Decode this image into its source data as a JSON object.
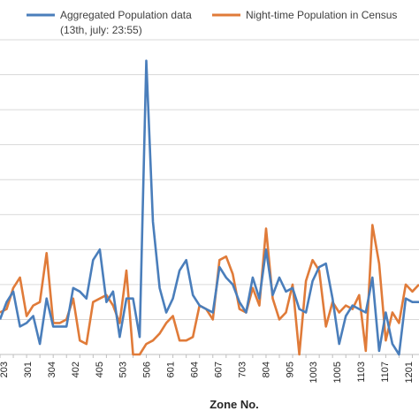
{
  "chart_data": {
    "type": "line",
    "xlabel": "Zone No.",
    "legend_position": "top",
    "grid": true,
    "ylim": [
      0,
      9
    ],
    "x_tick_labels": [
      "203",
      "301",
      "304",
      "402",
      "405",
      "503",
      "506",
      "601",
      "604",
      "607",
      "703",
      "804",
      "905",
      "1003",
      "1005",
      "1103",
      "1107",
      "1201"
    ],
    "series": [
      {
        "name": "Aggregated Population data",
        "name_line2": "(13th, july: 23:55)",
        "color": "#4a7ebb",
        "values": [
          1.0,
          1.5,
          1.8,
          0.8,
          0.9,
          1.1,
          0.3,
          1.6,
          0.8,
          0.8,
          0.8,
          1.9,
          1.8,
          1.6,
          2.7,
          3.0,
          1.5,
          1.8,
          0.5,
          1.6,
          1.6,
          0.5,
          8.4,
          3.8,
          1.9,
          1.2,
          1.6,
          2.4,
          2.7,
          1.7,
          1.4,
          1.3,
          1.2,
          2.5,
          2.2,
          2.0,
          1.5,
          1.2,
          2.2,
          1.6,
          3.0,
          1.7,
          2.2,
          1.8,
          1.9,
          1.3,
          1.2,
          2.1,
          2.5,
          2.6,
          1.6,
          0.3,
          1.1,
          1.4,
          1.3,
          1.2,
          2.2,
          0.1,
          1.2,
          0.3,
          0.0,
          1.6,
          1.5,
          1.5
        ]
      },
      {
        "name": "Night-time Population in Census",
        "color": "#e07b39",
        "values": [
          1.2,
          1.3,
          1.9,
          2.2,
          1.1,
          1.4,
          1.5,
          2.9,
          0.9,
          0.9,
          1.0,
          1.6,
          0.4,
          0.3,
          1.5,
          1.6,
          1.7,
          1.4,
          0.9,
          2.4,
          0.0,
          0.0,
          0.3,
          0.4,
          0.6,
          0.9,
          1.1,
          0.4,
          0.4,
          0.5,
          1.4,
          1.3,
          1.0,
          2.7,
          2.8,
          2.3,
          1.3,
          1.2,
          1.9,
          1.4,
          3.6,
          1.6,
          1.0,
          1.2,
          2.0,
          0.0,
          2.1,
          2.7,
          2.4,
          0.8,
          1.5,
          1.2,
          1.4,
          1.3,
          1.7,
          0.1,
          3.7,
          2.6,
          0.4,
          1.2,
          0.9,
          2.0,
          1.8,
          2.0
        ]
      }
    ]
  }
}
